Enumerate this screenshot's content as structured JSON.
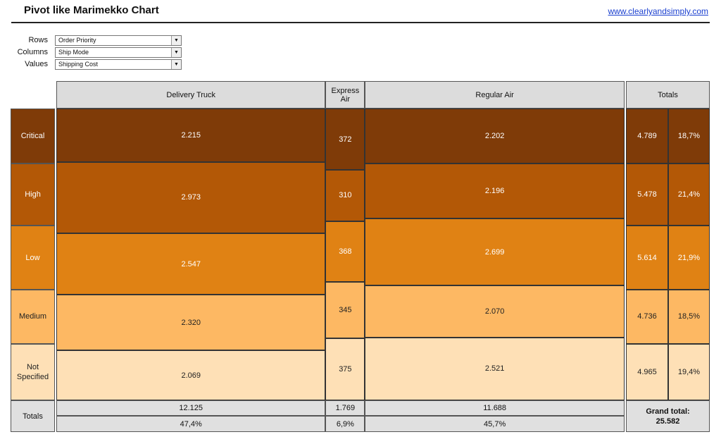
{
  "header": {
    "title": "Pivot like Marimekko Chart",
    "link": "www.clearlyandsimply.com"
  },
  "controls": [
    {
      "label": "Rows",
      "value": "Order Priority"
    },
    {
      "label": "Columns",
      "value": "Ship Mode"
    },
    {
      "label": "Values",
      "value": "Shipping Cost"
    }
  ],
  "chart_data": {
    "type": "marimekko",
    "columns": [
      "Delivery Truck",
      "Express Air",
      "Regular Air"
    ],
    "rows": [
      "Critical",
      "High",
      "Low",
      "Medium",
      "Not Specified"
    ],
    "values": [
      [
        2215,
        372,
        2202
      ],
      [
        2973,
        310,
        2196
      ],
      [
        2547,
        368,
        2699
      ],
      [
        2320,
        345,
        2070
      ],
      [
        2069,
        375,
        2521
      ]
    ],
    "cell_labels": [
      [
        "2.215",
        "372",
        "2.202"
      ],
      [
        "2.973",
        "310",
        "2.196"
      ],
      [
        "2.547",
        "368",
        "2.699"
      ],
      [
        "2.320",
        "345",
        "2.070"
      ],
      [
        "2.069",
        "375",
        "2.521"
      ]
    ],
    "row_colors": [
      "#7f3b08",
      "#b35806",
      "#e08214",
      "#fdb863",
      "#fee0b6"
    ],
    "row_text_colors": [
      "#ffffff",
      "#ffffff",
      "#ffffff",
      "#222222",
      "#222222"
    ],
    "row_totals": [
      "4.789",
      "5.478",
      "5.614",
      "4.736",
      "4.965"
    ],
    "row_shares": [
      "18,7%",
      "21,4%",
      "21,9%",
      "18,5%",
      "19,4%"
    ],
    "column_totals": [
      "12.125",
      "1.769",
      "11.688"
    ],
    "column_shares": [
      "47,4%",
      "6,9%",
      "45,7%"
    ],
    "totals_label": "Totals",
    "grand_total_label": "Grand total:",
    "grand_total": "25.582"
  }
}
